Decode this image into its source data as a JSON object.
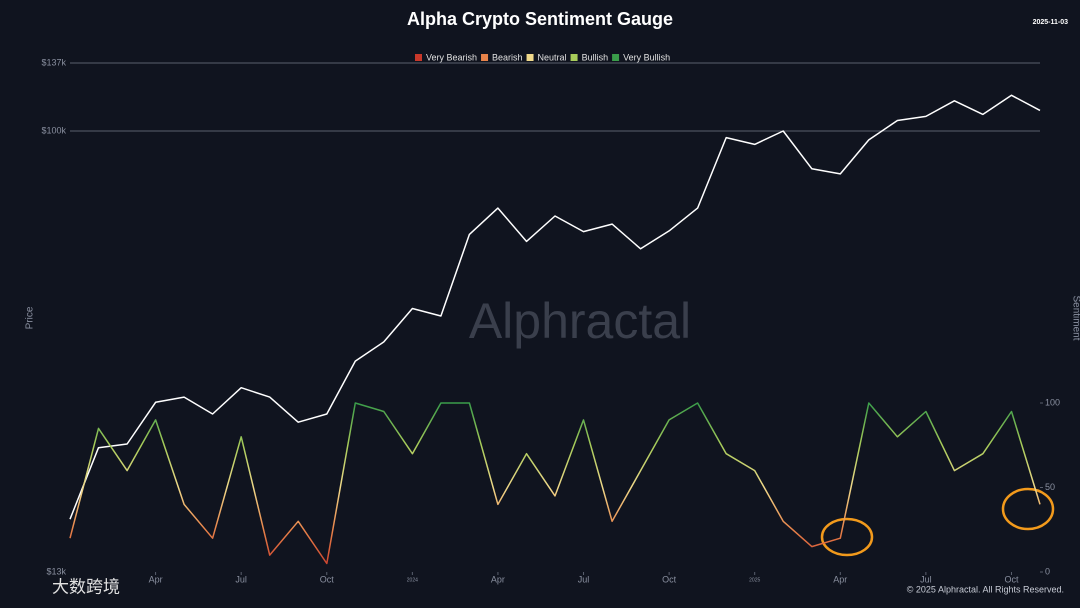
{
  "chart_data": {
    "type": "line",
    "title": "Alpha Crypto Sentiment Gauge",
    "subtitle": "2025-11-03",
    "ylabel": "Price",
    "y2label": "Sentiment",
    "watermark": "Alphractal",
    "footer": "© 2025 Alphractal. All Rights Reserved.",
    "overlay_watermark": "大数跨境",
    "log_scale": true,
    "grid": true,
    "legend_position": "top",
    "legend": [
      {
        "name": "Very Bearish",
        "color": "#c8382a"
      },
      {
        "name": "Bearish",
        "color": "#e8834a"
      },
      {
        "name": "Neutral",
        "color": "#f0d98a"
      },
      {
        "name": "Bullish",
        "color": "#a8cc5a"
      },
      {
        "name": "Very Bullish",
        "color": "#3a9d4a"
      }
    ],
    "x": [
      "2023-01",
      "2023-02",
      "2023-03",
      "2023-04",
      "2023-05",
      "2023-06",
      "2023-07",
      "2023-08",
      "2023-09",
      "2023-10",
      "2023-11",
      "2023-12",
      "2024-01",
      "2024-02",
      "2024-03",
      "2024-04",
      "2024-05",
      "2024-06",
      "2024-07",
      "2024-08",
      "2024-09",
      "2024-10",
      "2024-11",
      "2024-12",
      "2025-01",
      "2025-02",
      "2025-03",
      "2025-04",
      "2025-05",
      "2025-06",
      "2025-07",
      "2025-08",
      "2025-09",
      "2025-10",
      "2025-11"
    ],
    "series": [
      {
        "name": "Price",
        "color": "#ffffff",
        "axis": "y",
        "values": [
          16600,
          23100,
          23500,
          28500,
          29200,
          27000,
          30500,
          29200,
          26000,
          27000,
          34500,
          37700,
          44000,
          42500,
          62000,
          70000,
          60000,
          67500,
          62800,
          65000,
          58000,
          63000,
          70000,
          97000,
          94000,
          100000,
          84000,
          82000,
          96000,
          105000,
          107000,
          115000,
          108000,
          118000,
          110000
        ]
      },
      {
        "name": "Sentiment",
        "axis": "y2",
        "values": [
          20,
          85,
          60,
          90,
          40,
          20,
          80,
          10,
          30,
          5,
          100,
          95,
          70,
          100,
          100,
          40,
          70,
          45,
          90,
          30,
          60,
          90,
          100,
          70,
          60,
          30,
          15,
          20,
          100,
          80,
          95,
          60,
          70,
          95,
          40
        ]
      }
    ],
    "xticks": [
      {
        "value": "2023-04",
        "label": "Apr"
      },
      {
        "value": "2023-07",
        "label": "Jul"
      },
      {
        "value": "2023-10",
        "label": "Oct"
      },
      {
        "value": "2024-01",
        "label": "2024"
      },
      {
        "value": "2024-04",
        "label": "Apr"
      },
      {
        "value": "2024-07",
        "label": "Jul"
      },
      {
        "value": "2024-10",
        "label": "Oct"
      },
      {
        "value": "2025-01",
        "label": "2025"
      },
      {
        "value": "2025-04",
        "label": "Apr"
      },
      {
        "value": "2025-07",
        "label": "Jul"
      },
      {
        "value": "2025-10",
        "label": "Oct"
      }
    ],
    "ylim": [
      13000,
      137000
    ],
    "yticks": [
      {
        "value": 13000,
        "label": "$13k"
      },
      {
        "value": 100000,
        "label": "$100k"
      },
      {
        "value": 137000,
        "label": "$137k"
      }
    ],
    "y2lim": [
      0,
      100
    ],
    "y2ticks": [
      0,
      50,
      100
    ]
  }
}
